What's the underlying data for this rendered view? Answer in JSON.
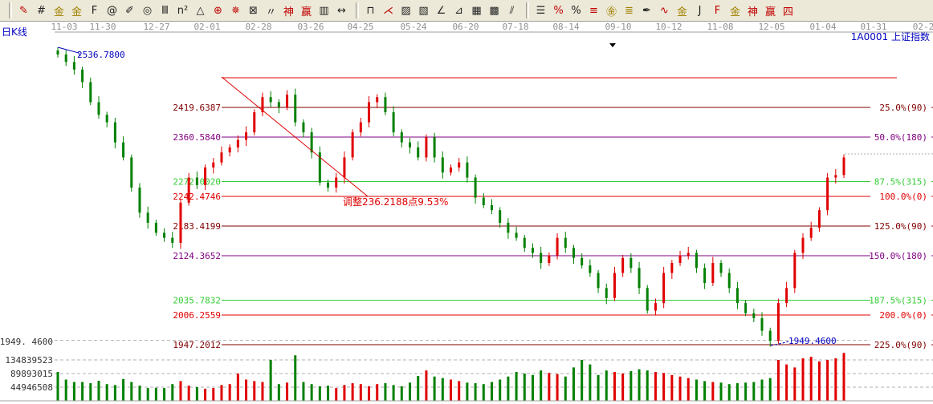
{
  "toolbar": {
    "groups": [
      [
        "pen",
        "hlines",
        "gold-a",
        "gold-b",
        "fib-f",
        "spiral",
        "pen-ruler",
        "circle",
        "vlines",
        "n2",
        "triangle",
        "target",
        "compass",
        "box-target",
        "tick-lines",
        "shen",
        "ying",
        "ruler-123",
        "width-arrows"
      ],
      [
        "square-ruler",
        "fan-red",
        "box-fan",
        "box-fan-2",
        "angle",
        "angle-2",
        "grid",
        "grid-2",
        "parallel"
      ],
      [
        "bars-ruler",
        "percent-red",
        "percent",
        "percent-lines",
        "gold-circle",
        "gold-lines",
        "pen-bar",
        "wave",
        "gold-line",
        "j-angle",
        "f-angle",
        "gold-angle",
        "shen-angle",
        "ying-angle",
        "four-angle"
      ]
    ]
  },
  "header": {
    "period_label": "日K线",
    "symbol_label": "1A0001  上证指数"
  },
  "date_axis": [
    "11-03",
    "11-30",
    "12-27",
    "02-01",
    "02-28",
    "03-26",
    "04-25",
    "05-24",
    "06-20",
    "07-18",
    "08-14",
    "09-10",
    "10-12",
    "11-08",
    "12-05",
    "01-04",
    "01-31",
    "02-2"
  ],
  "chart_data": {
    "type": "candlestick",
    "title": "",
    "high_label": "2536.7800",
    "low_label": "1949.4600",
    "left_low_label": "1949. 4600",
    "close": [
      2525,
      2510,
      2495,
      2470,
      2430,
      2405,
      2390,
      2350,
      2320,
      2260,
      2210,
      2190,
      2170,
      2160,
      2150,
      2230,
      2280,
      2265,
      2300,
      2310,
      2330,
      2340,
      2355,
      2370,
      2410,
      2440,
      2430,
      2420,
      2445,
      2390,
      2370,
      2330,
      2270,
      2260,
      2280,
      2320,
      2370,
      2390,
      2430,
      2440,
      2410,
      2370,
      2350,
      2340,
      2320,
      2360,
      2320,
      2290,
      2300,
      2310,
      2280,
      2240,
      2225,
      2215,
      2190,
      2170,
      2160,
      2140,
      2130,
      2110,
      2125,
      2160,
      2140,
      2120,
      2105,
      2090,
      2060,
      2040,
      2090,
      2120,
      2100,
      2060,
      2015,
      2030,
      2090,
      2110,
      2125,
      2130,
      2100,
      2070,
      2110,
      2090,
      2060,
      2030,
      2010,
      2000,
      1975,
      1955,
      2030,
      2060,
      2130,
      2160,
      2180,
      2215,
      2280,
      2285,
      2320
    ],
    "volume": [
      95000000,
      70000000,
      62000000,
      62000000,
      58000000,
      66000000,
      55000000,
      52000000,
      72000000,
      62000000,
      50000000,
      42000000,
      43000000,
      42000000,
      55000000,
      65000000,
      50000000,
      45000000,
      40000000,
      42000000,
      52000000,
      55000000,
      90000000,
      70000000,
      65000000,
      62000000,
      135000000,
      55000000,
      60000000,
      150000000,
      62000000,
      55000000,
      48000000,
      50000000,
      42000000,
      52000000,
      58000000,
      55000000,
      48000000,
      55000000,
      58000000,
      52000000,
      48000000,
      60000000,
      82000000,
      100000000,
      80000000,
      75000000,
      70000000,
      65000000,
      60000000,
      58000000,
      55000000,
      62000000,
      70000000,
      80000000,
      95000000,
      90000000,
      85000000,
      100000000,
      92000000,
      88000000,
      80000000,
      110000000,
      135000000,
      120000000,
      85000000,
      100000000,
      95000000,
      90000000,
      98000000,
      104000000,
      100000000,
      95000000,
      92000000,
      85000000,
      80000000,
      75000000,
      70000000,
      65000000,
      62000000,
      60000000,
      55000000,
      58000000,
      60000000,
      62000000,
      70000000,
      75000000,
      135000000,
      120000000,
      110000000,
      140000000,
      145000000,
      130000000,
      135000000,
      140000000,
      158000000
    ],
    "volume_axis": [
      "134839523",
      "89893015",
      "44946508"
    ],
    "volume_ticks": [
      134839523,
      89893015,
      44946508
    ],
    "fib_levels": [
      {
        "price": 2478.6934,
        "left_label": "",
        "right_label": "",
        "color": "#e00000"
      },
      {
        "price": 2419.6387,
        "left_label": "2419.6387",
        "right_label": "25.0%(90)",
        "color": "#800000"
      },
      {
        "price": 2360.584,
        "left_label": "2360.5840",
        "right_label": "50.0%(180)",
        "color": "#800080"
      },
      {
        "price": 2272.002,
        "left_label": "2272.0020",
        "right_label": "87.5%(315)",
        "color": "#33cc33"
      },
      {
        "price": 2242.4746,
        "left_label": "2242.4746",
        "right_label": "100.0%(0)",
        "color": "#e00000"
      },
      {
        "price": 2183.4199,
        "left_label": "2183.4199",
        "right_label": "125.0%(90)",
        "color": "#800000"
      },
      {
        "price": 2124.3652,
        "left_label": "2124.3652",
        "right_label": "150.0%(180)",
        "color": "#800080"
      },
      {
        "price": 2035.7832,
        "left_label": "2035.7832",
        "right_label": "187.5%(315)",
        "color": "#33cc33"
      },
      {
        "price": 2006.2559,
        "left_label": "2006.2559",
        "right_label": "200.0%(0)",
        "color": "#e00000"
      },
      {
        "price": 1947.2012,
        "left_label": "1947.2012",
        "right_label": "225.0%(90)",
        "color": "#800000"
      }
    ],
    "annotation": "调整236.2188点9.53%",
    "colors": {
      "up": "#e00000",
      "down": "#008000",
      "label_blue": "#0000c0"
    }
  }
}
